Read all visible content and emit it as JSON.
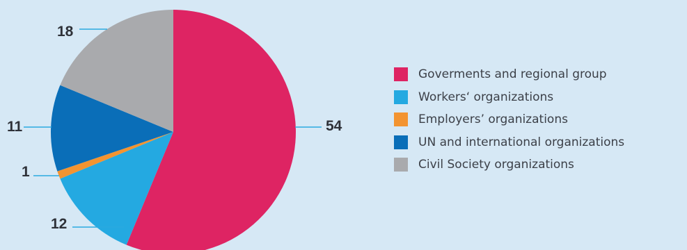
{
  "chart_data": {
    "type": "pie",
    "slices": [
      {
        "label": "Goverments and regional group",
        "value": 54,
        "color": "#de2463"
      },
      {
        "label": "Workers‘ organizations",
        "value": 12,
        "color": "#24a9e1"
      },
      {
        "label": "Employers’ organizations",
        "value": 1,
        "color": "#f39431"
      },
      {
        "label": "UN and international organizations",
        "value": 11,
        "color": "#0a6eb8"
      },
      {
        "label": "Civil Society organizations",
        "value": 18,
        "color": "#a9aaad"
      }
    ],
    "data_labels": [
      "54",
      "12",
      "1",
      "11",
      "18"
    ],
    "legend_position": "right",
    "title": "",
    "leader_line_color": "#2aa9e0"
  }
}
